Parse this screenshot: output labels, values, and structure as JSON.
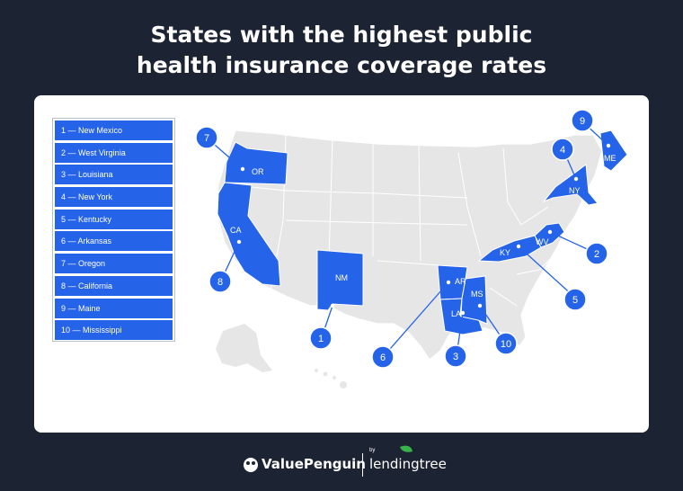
{
  "title_line1": "States with the highest public",
  "title_line2": "health insurance coverage rates",
  "legend": [
    "1 — New Mexico",
    "2 — West Virginia",
    "3 — Louisiana",
    "4 — New York",
    "5 — Kentucky",
    "6 — Arkansas",
    "7 — Oregon",
    "8 — California",
    "9 — Maine",
    "10 — Mississippi"
  ],
  "states": {
    "nm": "NM",
    "wv": "WV",
    "la": "LA",
    "ny": "NY",
    "ky": "KY",
    "ar": "AR",
    "or": "OR",
    "ca": "CA",
    "me": "ME",
    "ms": "MS"
  },
  "ranks": {
    "nm": "1",
    "wv": "2",
    "la": "3",
    "ny": "4",
    "ky": "5",
    "ar": "6",
    "or": "7",
    "ca": "8",
    "me": "9",
    "ms": "10"
  },
  "brand": {
    "left": "ValuePenguin",
    "by": "by",
    "right": "lendingtree"
  },
  "colors": {
    "highlight": "#2563e8",
    "background": "#1c2333",
    "state_fill": "#e6e6e6"
  }
}
